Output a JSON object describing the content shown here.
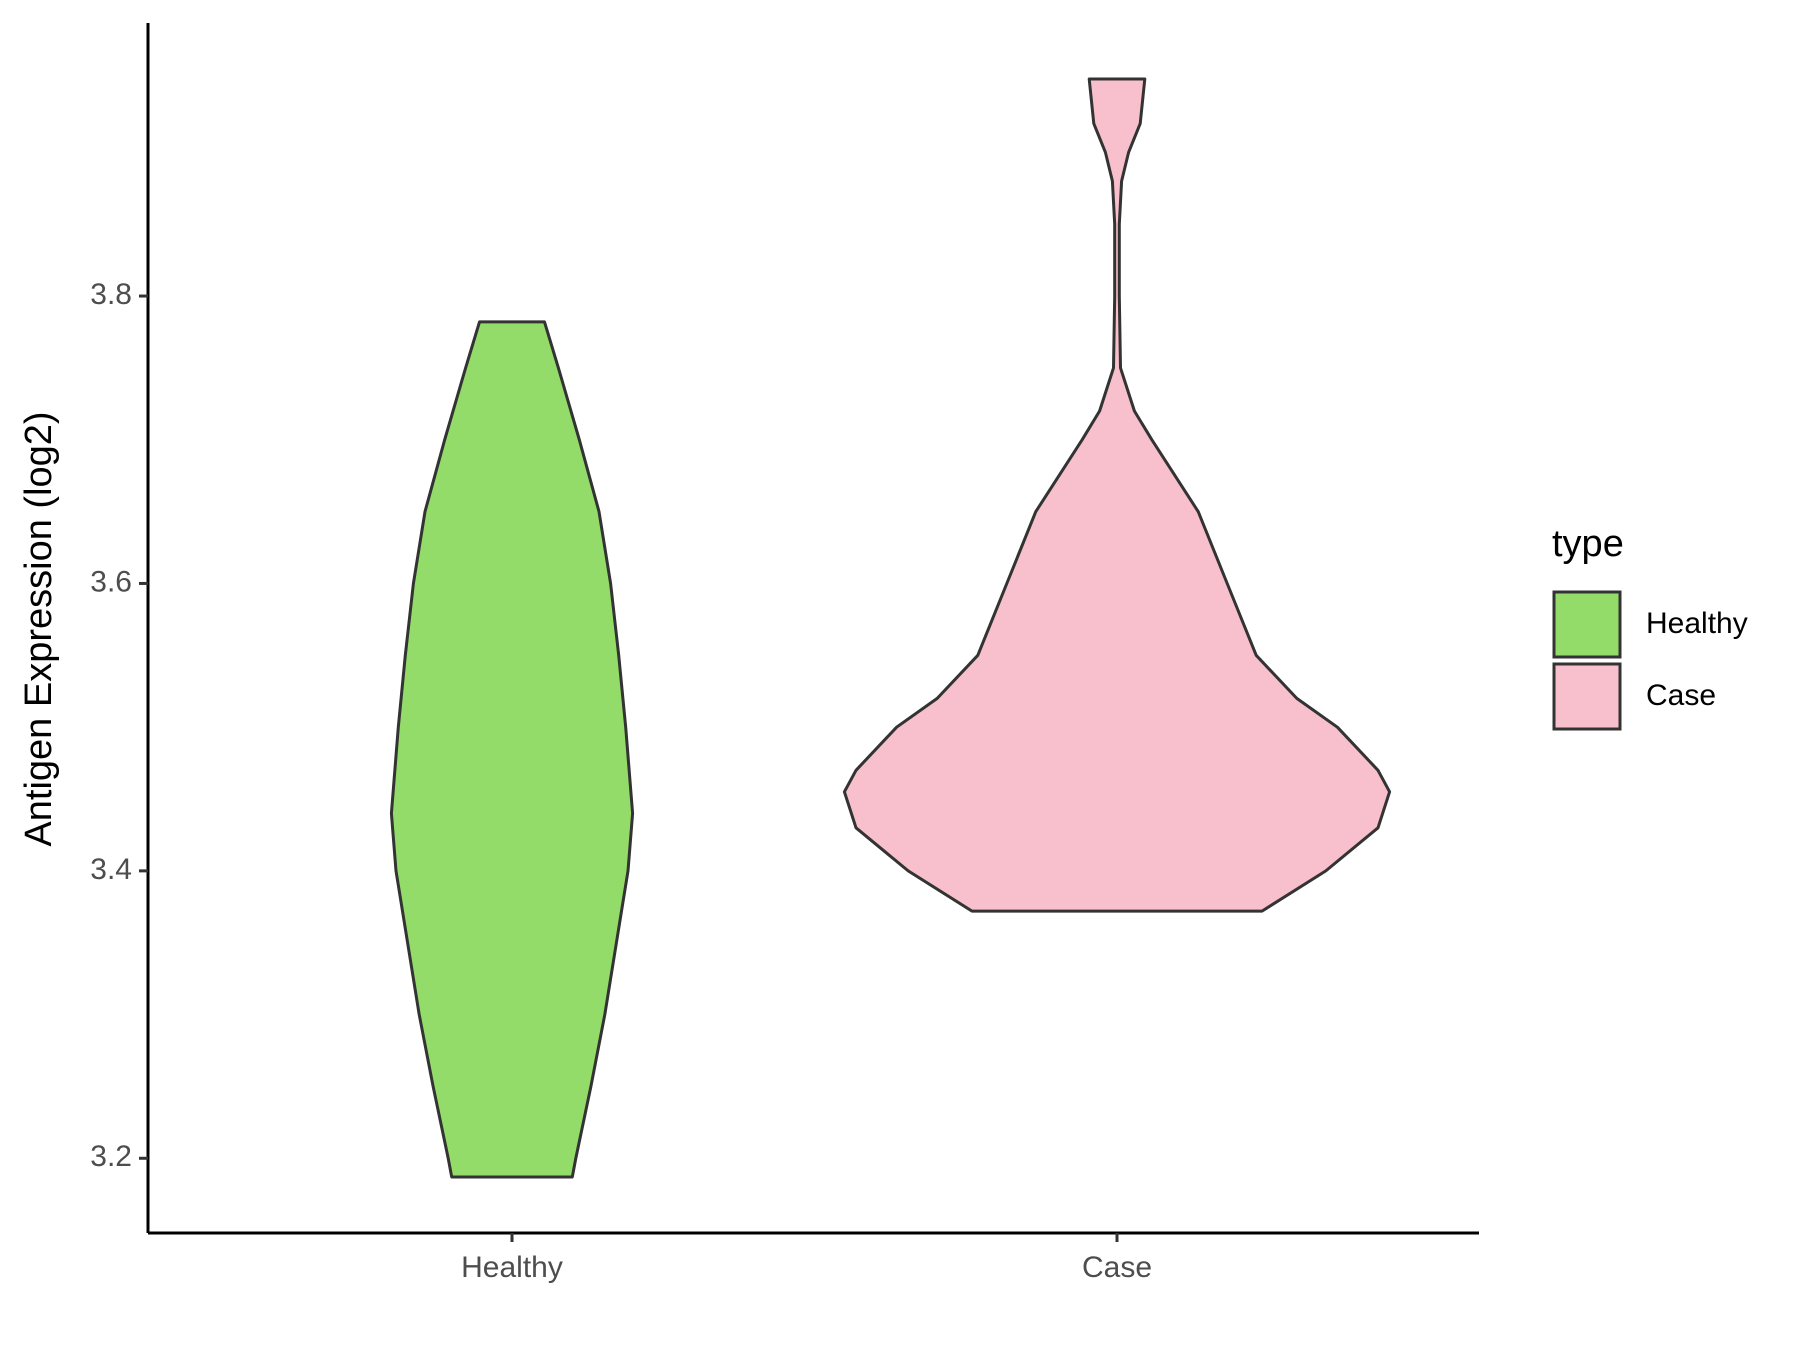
{
  "chart_data": {
    "type": "violin",
    "y_label": "Antigen Expression (log2)",
    "categories": [
      "Healthy",
      "Case"
    ],
    "legend_title": "type",
    "legend": "right",
    "series": [
      {
        "name": "Healthy",
        "color": "#94dc6a",
        "values": [
          3.782,
          3.75,
          3.7,
          3.65,
          3.6,
          3.55,
          3.5,
          3.44,
          3.4,
          3.35,
          3.3,
          3.25,
          3.2,
          3.187
        ],
        "widths": [
          28,
          40,
          58,
          75,
          85,
          92,
          98,
          104,
          100,
          90,
          80,
          68,
          55,
          52
        ]
      },
      {
        "name": "Case",
        "color": "#f8c0cc",
        "values": [
          3.951,
          3.92,
          3.9,
          3.88,
          3.85,
          3.8,
          3.75,
          3.72,
          3.7,
          3.65,
          3.6,
          3.55,
          3.52,
          3.5,
          3.47,
          3.455,
          3.43,
          3.4,
          3.372
        ],
        "widths": [
          24,
          20,
          10,
          4,
          2,
          2,
          3,
          15,
          30,
          70,
          95,
          120,
          155,
          190,
          225,
          235,
          225,
          180,
          125
        ]
      }
    ],
    "ylim": [
      3.148,
      3.99
    ],
    "yticks": [
      3.2,
      3.4,
      3.6,
      3.8
    ]
  }
}
